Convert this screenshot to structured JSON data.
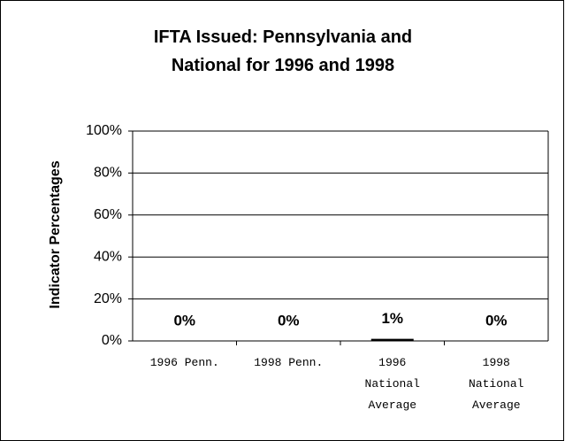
{
  "chart_data": {
    "type": "bar",
    "title": "IFTA Issued: Pennsylvania and National for 1996 and 1998",
    "y_label": "Indicator Percentages",
    "categories": [
      "1996 Penn.",
      "1998 Penn.",
      "1996 National Average",
      "1998 National Average"
    ],
    "values": [
      0,
      0,
      1,
      0
    ],
    "value_labels": [
      "0%",
      "0%",
      "1%",
      "0%"
    ],
    "color": "#000000",
    "ylim": [
      0,
      100
    ],
    "yticks": [
      {
        "value": 0,
        "label": "0%"
      },
      {
        "value": 20,
        "label": "20%"
      },
      {
        "value": 40,
        "label": "40%"
      },
      {
        "value": 60,
        "label": "60%"
      },
      {
        "value": 80,
        "label": "80%"
      },
      {
        "value": 100,
        "label": "100%"
      }
    ],
    "grid": true
  }
}
